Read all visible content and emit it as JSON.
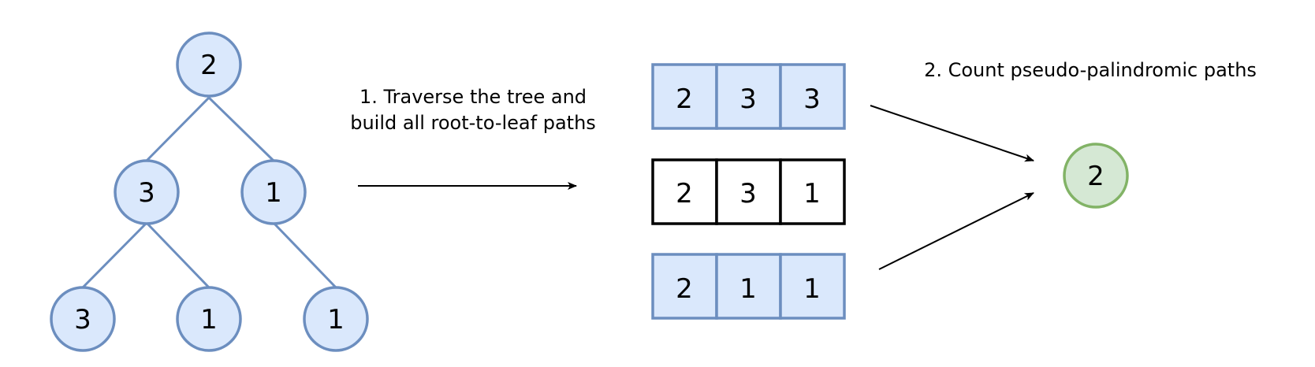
{
  "tree": {
    "root": "2",
    "left": "3",
    "right": "1",
    "left_left": "3",
    "left_right": "1",
    "right_right": "1"
  },
  "step1_label": {
    "line1": "1. Traverse the tree and",
    "line2": "build all root-to-leaf paths"
  },
  "step2_label": "2. Count pseudo-palindromic paths",
  "paths": [
    {
      "values": [
        "2",
        "3",
        "3"
      ],
      "highlighted": true
    },
    {
      "values": [
        "2",
        "3",
        "1"
      ],
      "highlighted": false
    },
    {
      "values": [
        "2",
        "1",
        "1"
      ],
      "highlighted": true
    }
  ],
  "result": "2",
  "colors": {
    "node_fill": "#dae8fc",
    "node_stroke": "#6c8ebf",
    "result_fill": "#d5e8d4",
    "result_stroke": "#82b366"
  }
}
